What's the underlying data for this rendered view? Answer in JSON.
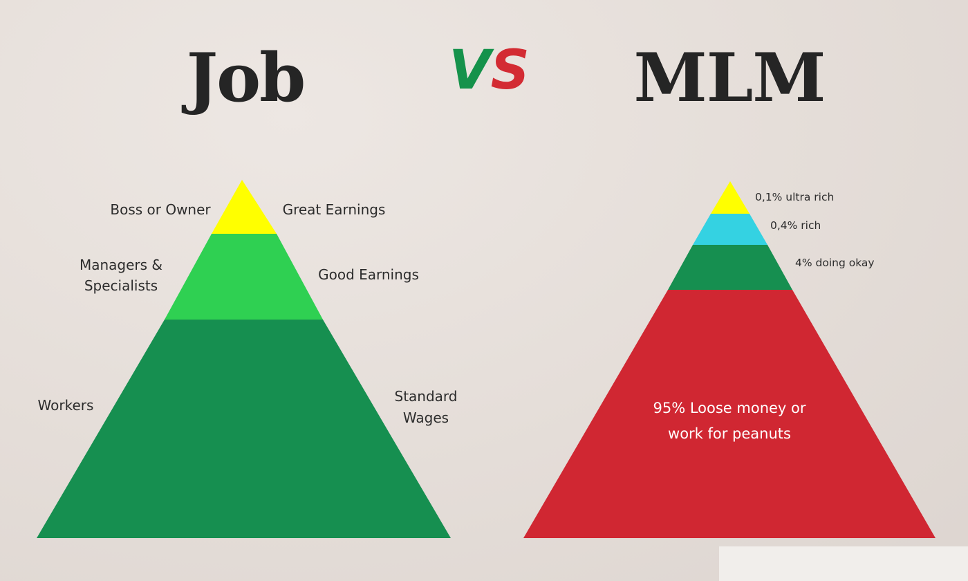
{
  "header": {
    "left_title": "Job",
    "vs_v": "V",
    "vs_s": "S",
    "right_title": "MLM"
  },
  "job_pyramid": {
    "tiers": [
      {
        "left_label": "Boss or Owner",
        "right_label": "Great Earnings",
        "color": "#ffff00"
      },
      {
        "left_label_lines": [
          "Managers &",
          "Specialists"
        ],
        "right_label": "Good Earnings",
        "color": "#2fd052"
      },
      {
        "left_label": "Workers",
        "right_label_lines": [
          "Standard",
          "Wages"
        ],
        "color": "#168f50"
      }
    ]
  },
  "mlm_pyramid": {
    "tiers": [
      {
        "label": "0,1% ultra rich",
        "color": "#ffff00"
      },
      {
        "label": "0,4% rich",
        "color": "#34d2e2"
      },
      {
        "label": "4% doing okay",
        "color": "#168f50"
      },
      {
        "label_lines": [
          "95% Loose money or",
          "work for peanuts"
        ],
        "color": "#d02732"
      }
    ]
  }
}
